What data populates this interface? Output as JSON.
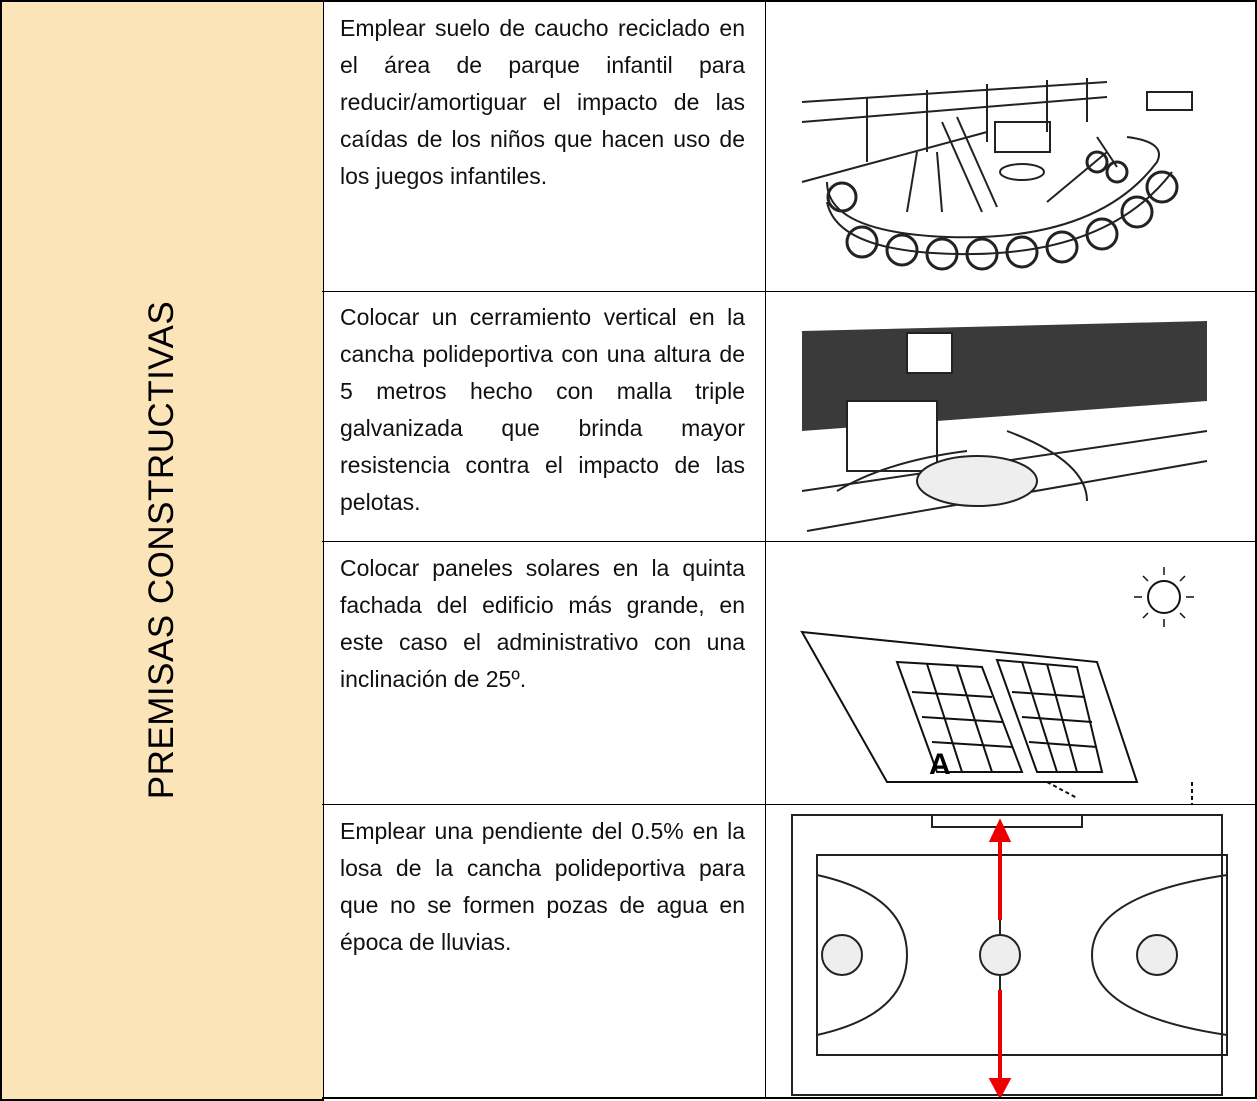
{
  "sidebar": {
    "title": "PREMISAS CONSTRUCTIVAS"
  },
  "rows": [
    {
      "text": "Emplear suelo de caucho reciclado en el área de parque infantil para reducir/amortiguar el impacto de las caídas de los niños que hacen uso de los juegos infantiles."
    },
    {
      "text": "Colocar un cerramiento vertical en la cancha polideportiva con una altura de 5 metros hecho con malla triple galvanizada que brinda mayor resistencia contra el impacto de las pelotas."
    },
    {
      "text": "Colocar paneles solares en la quinta fachada del edificio más grande, en este caso el administrativo con una inclinación de 25º.",
      "image_label": "A"
    },
    {
      "text": "Emplear una pendiente del 0.5% en la losa de la cancha polideportiva para que no se formen pozas de agua en época de lluvias."
    }
  ]
}
